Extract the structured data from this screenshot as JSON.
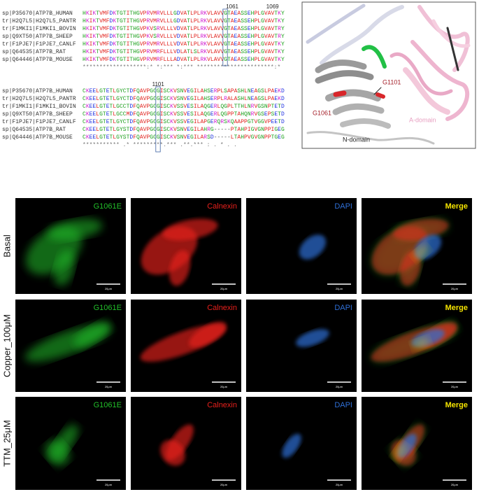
{
  "alignment": {
    "blocks": [
      {
        "position_labels": [
          "1061",
          "1069"
        ],
        "rows": [
          {
            "id": "sp|P35670|ATP7B_HUMAN",
            "sequence": "HKIKTVMFDKTGTITHGVPRVMRVLLLGDVATLPLRKVLAVVGTAEASSEHPLGVAVTKY"
          },
          {
            "id": "tr|H2Q7L5|H2Q7L5_PANTR",
            "sequence": "HKIKTVMFDKTGTITHGVPRVMRVLLLGDVATLPLRKVLAVVGTAEASSEHPLGVAVTKY"
          },
          {
            "id": "tr|F1MKI1|F1MKI1_BOVIN",
            "sequence": "HKIKTVMFDKTGTITHGVPKVSRVLLLVDVATLPLRKVLAVVGTAEASSEHPLGVAVTRY"
          },
          {
            "id": "sp|Q9XT50|ATP7B_SHEEP",
            "sequence": "HKIKTVMFDKTGTITHGVPKVSRVLLLVDVATLPLRKVLAVVGTAEASSEHPLGVAVTRY"
          },
          {
            "id": "tr|F1PJE7|F1PJE7_CANLF",
            "sequence": "HKIKTVMFDKTGTITHGVPRVMRVLLLVDVATLPLRKVLAVVGTAEASSEHPLGVAVTKY"
          },
          {
            "id": "sp|Q64535|ATP7B_RAT",
            "sequence": "HKIKTVMFDKTGTITHGVPRVMRFLLLVDLATLSLRKVLAVVGTAEASSEHPLGVAVTKY"
          },
          {
            "id": "sp|Q64446|ATP7B_MOUSE",
            "sequence": "HKIKTVMFDKTGTITHGVPRVMRFLLLADVATLPLRKVLAVVGTAEASSEHPLGVAVTKY"
          }
        ],
        "conservation": "*******************:* *:*** *:*** ***********************:*"
      },
      {
        "position_labels": [
          "1101"
        ],
        "rows": [
          {
            "id": "sp|P35670|ATP7B_HUMAN",
            "sequence": "CKEELGTETLGYCTDFQAVPGCGISCKVSNVEGILAHSERPLSAPASHLNEAGSLPAEKD"
          },
          {
            "id": "tr|H2Q7L5|H2Q7L5_PANTR",
            "sequence": "CKEELGTETLGYCTDFQAVPGCGISCKVSNVEGILAHSERPLRALASHLNEAGSLPAEKD"
          },
          {
            "id": "tr|F1MKI1|F1MKI1_BOVIN",
            "sequence": "CKEELGTETLGCCTDFQAVPGCGISCKVSSVESILAQGERLQGPLTTHLNRVGSNPTETD"
          },
          {
            "id": "sp|Q9XT50|ATP7B_SHEEP",
            "sequence": "CKEELGTETLGCCMDFQAVPGCGISCKVSSVESILAQGERLQGPPTAHQNRVGSEPSETD"
          },
          {
            "id": "tr|F1PJE7|F1PJE7_CANLF",
            "sequence": "CKEELGTETLGYCTDFQAVPGCGISCKVSSVEGILAPGERQRSKQAAPPGTVGGVPEETD"
          },
          {
            "id": "sp|Q64535|ATP7B_RAT",
            "sequence": "CKEELGTETLGYSTDFQAVPGCGISCKVSNVEGILAHRG-----PTAHPIGVGNPPIGEG"
          },
          {
            "id": "sp|Q64446|ATP7B_MOUSE",
            "sequence": "CKEELGTETLGYSTDFQAVPGCGISCKVSNVEGILARSD-----LTAHPVGVGNPPTGEG"
          }
        ],
        "conservation": "*********** .* *********.*** .**.***      :      .  *  . .  "
      }
    ]
  },
  "structure": {
    "labels": {
      "g1101": "G1101",
      "g1061": "G1061",
      "a_domain": "A-domain",
      "n_domain": "N-domain"
    }
  },
  "microscopy": {
    "channels": [
      {
        "name": "G1061E",
        "color": "#22c02a"
      },
      {
        "name": "Calnexin",
        "color": "#e8201c"
      },
      {
        "name": "DAPI",
        "color": "#2f6fd6"
      },
      {
        "name": "Merge",
        "color": "#f5e400"
      }
    ],
    "conditions": [
      "Basal",
      "Copper_100μM",
      "TTM_25μM"
    ],
    "scale_bar": "20μm"
  }
}
